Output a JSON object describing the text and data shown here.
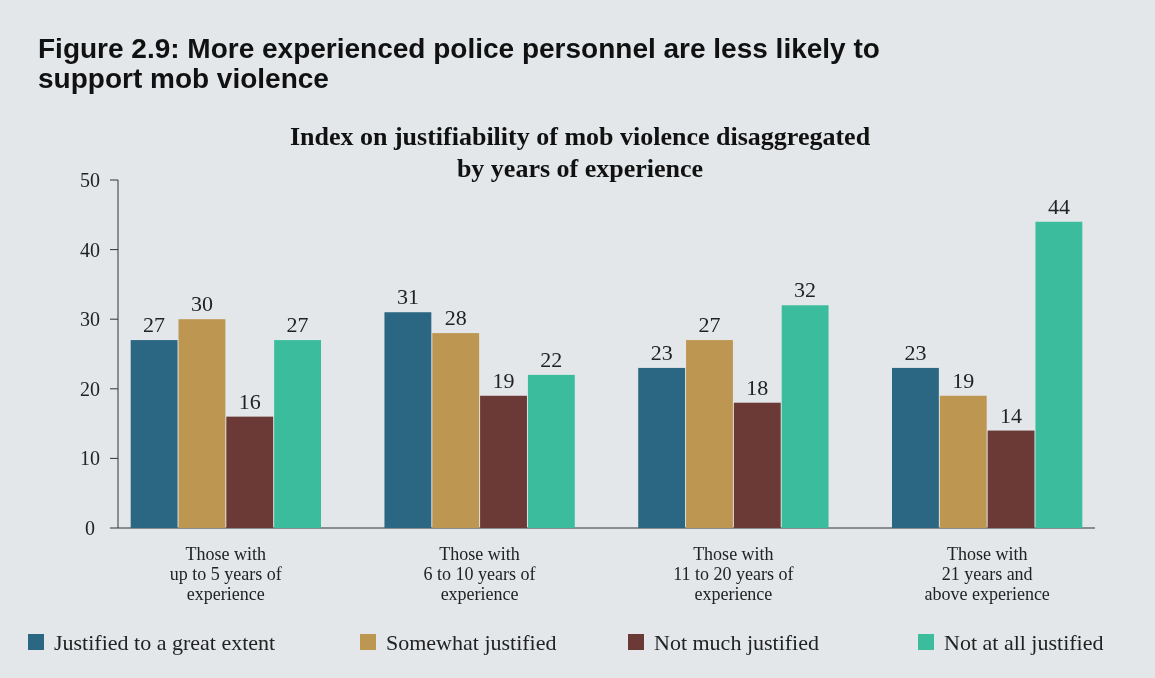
{
  "chart_data": {
    "type": "bar",
    "title": "Figure 2.9: More experienced police personnel are less likely to support mob violence",
    "subtitle": "Index on justifiability of mob violence disaggregated by years of experience",
    "categories": [
      "Those with\nup to 5 years of\nexperience",
      "Those with\n6 to 10 years of\nexperience",
      "Those with\n11 to 20 years of\nexperience",
      "Those with\n21 years and\nabove experience"
    ],
    "series": [
      {
        "name": "Justified to a great extent",
        "color": "#2b6782",
        "values": [
          27,
          31,
          23,
          23
        ]
      },
      {
        "name": "Somewhat justified",
        "color": "#bd9651",
        "values": [
          30,
          28,
          27,
          19
        ]
      },
      {
        "name": "Not much justified",
        "color": "#6b3a36",
        "values": [
          16,
          19,
          18,
          14
        ]
      },
      {
        "name": "Not at all justified",
        "color": "#3bbd9d",
        "values": [
          27,
          22,
          32,
          44
        ]
      }
    ],
    "ylim": [
      0,
      50
    ],
    "yticks": [
      0,
      10,
      20,
      30,
      40,
      50
    ],
    "data_labels": true,
    "grid": false,
    "legend": "bottom"
  }
}
